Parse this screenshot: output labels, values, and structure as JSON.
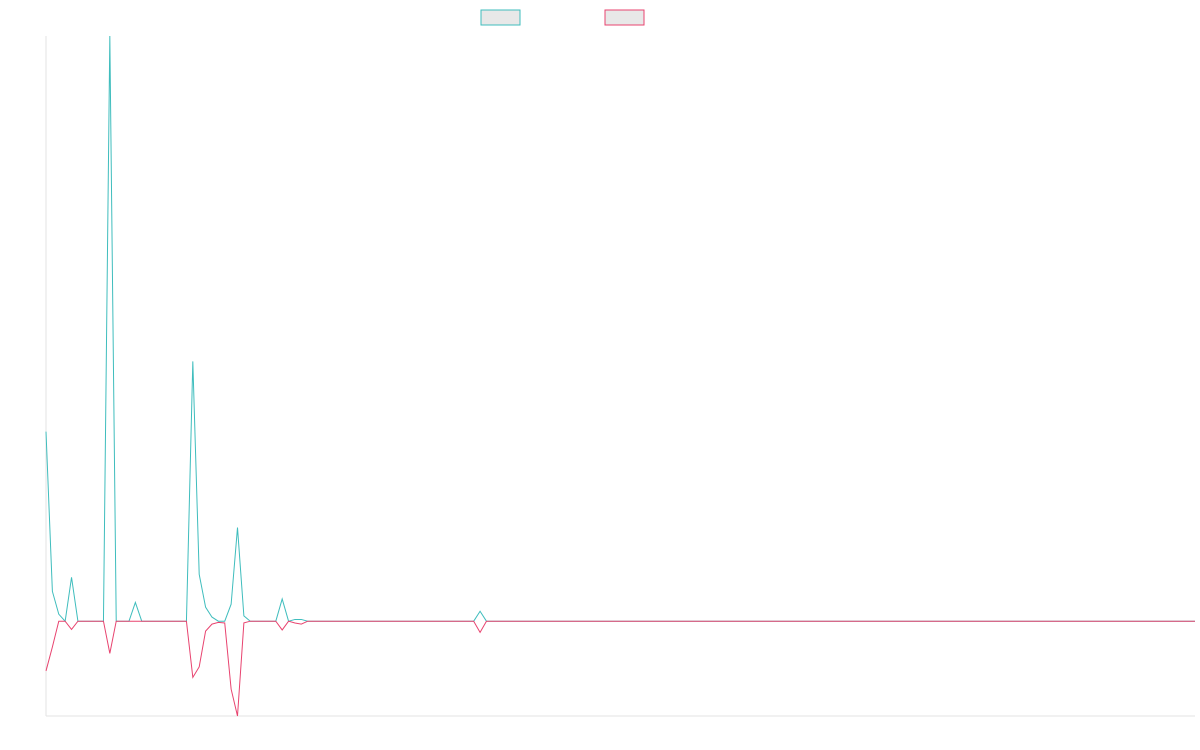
{
  "chart_data": {
    "type": "line",
    "ylim": [
      -16.2,
      100
    ],
    "series": [
      {
        "color": "#3fbdbd",
        "values": [
          32.4,
          5.1,
          1.2,
          0,
          7.5,
          0,
          0,
          0,
          0,
          0,
          100,
          0,
          0,
          0,
          3.2,
          0,
          0,
          0,
          0,
          0,
          0,
          0,
          0,
          44.4,
          8,
          2.4,
          0.7,
          0,
          0,
          2.9,
          16,
          0.9,
          0,
          0,
          0,
          0,
          0,
          3.8,
          0,
          0.3,
          0.3,
          0,
          0,
          0,
          0,
          0,
          0,
          0,
          0,
          0,
          0,
          0,
          0,
          0,
          0,
          0,
          0,
          0,
          0,
          0,
          0,
          0,
          0,
          0,
          0,
          0,
          0,
          0,
          1.7,
          0,
          0,
          0,
          0,
          0,
          0,
          0,
          0,
          0,
          0,
          0,
          0,
          0,
          0,
          0,
          0,
          0,
          0,
          0,
          0,
          0,
          0,
          0,
          0,
          0,
          0,
          0,
          0,
          0,
          0,
          0,
          0,
          0,
          0,
          0,
          0,
          0,
          0,
          0,
          0,
          0,
          0,
          0,
          0,
          0,
          0,
          0,
          0,
          0,
          0,
          0,
          0,
          0,
          0,
          0,
          0,
          0,
          0,
          0,
          0,
          0,
          0,
          0,
          0,
          0,
          0,
          0,
          0,
          0,
          0,
          0,
          0,
          0,
          0,
          0,
          0,
          0,
          0,
          0,
          0,
          0,
          0,
          0,
          0,
          0,
          0,
          0,
          0,
          0,
          0,
          0,
          0,
          0,
          0,
          0,
          0,
          0,
          0,
          0,
          0,
          0,
          0,
          0,
          0,
          0,
          0,
          0,
          0,
          0,
          0,
          0,
          0
        ]
      },
      {
        "color": "#e8436f",
        "values": [
          -8.5,
          -4.4,
          0,
          0,
          -1.4,
          0,
          0,
          0,
          0,
          0,
          -5.5,
          0,
          0,
          0,
          0,
          0,
          0,
          0,
          0,
          0,
          0,
          0,
          0,
          -9.6,
          -7.8,
          -1.7,
          -0.5,
          -0.2,
          -0.3,
          -11.6,
          -16.2,
          -0.3,
          0,
          0,
          0,
          0,
          0,
          -1.5,
          0,
          -0.3,
          -0.5,
          0,
          0,
          0,
          0,
          0,
          0,
          0,
          0,
          0,
          0,
          0,
          0,
          0,
          0,
          0,
          0,
          0,
          0,
          0,
          0,
          0,
          0,
          0,
          0,
          0,
          0,
          0,
          -1.9,
          0,
          0,
          0,
          0,
          0,
          0,
          0,
          0,
          0,
          0,
          0,
          0,
          0,
          0,
          0,
          0,
          0,
          0,
          0,
          0,
          0,
          0,
          0,
          0,
          0,
          0,
          0,
          0,
          0,
          0,
          0,
          0,
          0,
          0,
          0,
          0,
          0,
          0,
          0,
          0,
          0,
          0,
          0,
          0,
          0,
          0,
          0,
          0,
          0,
          0,
          0,
          0,
          0,
          0,
          0,
          0,
          0,
          0,
          0,
          0,
          0,
          0,
          0,
          0,
          0,
          0,
          0,
          0,
          0,
          0,
          0,
          0,
          0,
          0,
          0,
          0,
          0,
          0,
          0,
          0,
          0,
          0,
          0,
          0,
          0,
          0,
          0,
          0,
          0,
          0,
          0,
          0,
          0,
          0,
          0,
          0,
          0,
          0,
          0,
          0,
          0,
          0,
          0,
          0,
          0,
          0,
          0,
          0,
          0,
          0,
          0,
          0
        ]
      }
    ]
  }
}
